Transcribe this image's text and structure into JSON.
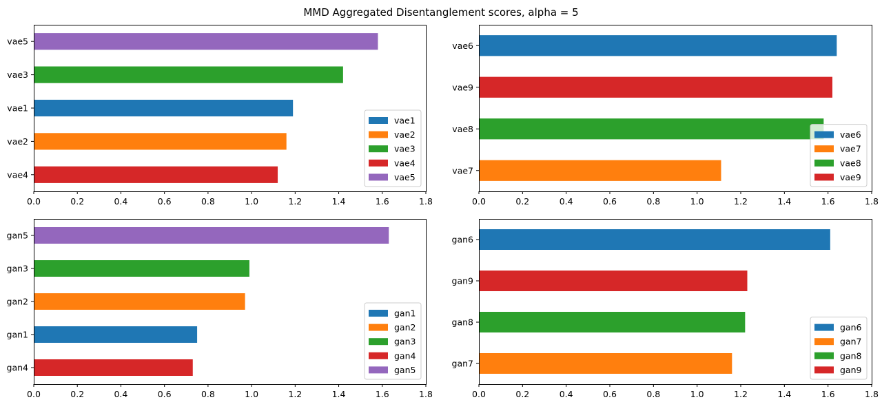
{
  "title": "MMD Aggregated Disentanglement scores, alpha = 5",
  "colors": {
    "c1": "#1f77b4",
    "c2": "#ff7f0e",
    "c3": "#2ca02c",
    "c4": "#d62728",
    "c5": "#9467bd"
  },
  "chart_data": [
    {
      "type": "bar",
      "orientation": "horizontal",
      "categories": [
        "vae4",
        "vae2",
        "vae1",
        "vae3",
        "vae5"
      ],
      "values": [
        1.12,
        1.16,
        1.19,
        1.42,
        1.58
      ],
      "bar_colors": [
        "#d62728",
        "#ff7f0e",
        "#1f77b4",
        "#2ca02c",
        "#9467bd"
      ],
      "xlim": [
        0,
        1.8
      ],
      "xticks": [
        0.0,
        0.2,
        0.4,
        0.6,
        0.8,
        1.0,
        1.2,
        1.4,
        1.6,
        1.8
      ],
      "legend": {
        "placement": "lower-right",
        "entries": [
          {
            "label": "vae1",
            "color": "#1f77b4"
          },
          {
            "label": "vae2",
            "color": "#ff7f0e"
          },
          {
            "label": "vae3",
            "color": "#2ca02c"
          },
          {
            "label": "vae4",
            "color": "#d62728"
          },
          {
            "label": "vae5",
            "color": "#9467bd"
          }
        ]
      }
    },
    {
      "type": "bar",
      "orientation": "horizontal",
      "categories": [
        "vae7",
        "vae8",
        "vae9",
        "vae6"
      ],
      "values": [
        1.11,
        1.58,
        1.62,
        1.64
      ],
      "bar_colors": [
        "#ff7f0e",
        "#2ca02c",
        "#d62728",
        "#1f77b4"
      ],
      "xlim": [
        0,
        1.8
      ],
      "xticks": [
        0.0,
        0.2,
        0.4,
        0.6,
        0.8,
        1.0,
        1.2,
        1.4,
        1.6,
        1.8
      ],
      "legend": {
        "placement": "lower-right",
        "entries": [
          {
            "label": "vae6",
            "color": "#1f77b4"
          },
          {
            "label": "vae7",
            "color": "#ff7f0e"
          },
          {
            "label": "vae8",
            "color": "#2ca02c"
          },
          {
            "label": "vae9",
            "color": "#d62728"
          }
        ]
      }
    },
    {
      "type": "bar",
      "orientation": "horizontal",
      "categories": [
        "gan4",
        "gan1",
        "gan2",
        "gan3",
        "gan5"
      ],
      "values": [
        0.73,
        0.75,
        0.97,
        0.99,
        1.63
      ],
      "bar_colors": [
        "#d62728",
        "#1f77b4",
        "#ff7f0e",
        "#2ca02c",
        "#9467bd"
      ],
      "xlim": [
        0,
        1.8
      ],
      "xticks": [
        0.0,
        0.2,
        0.4,
        0.6,
        0.8,
        1.0,
        1.2,
        1.4,
        1.6,
        1.8
      ],
      "legend": {
        "placement": "lower-right",
        "entries": [
          {
            "label": "gan1",
            "color": "#1f77b4"
          },
          {
            "label": "gan2",
            "color": "#ff7f0e"
          },
          {
            "label": "gan3",
            "color": "#2ca02c"
          },
          {
            "label": "gan4",
            "color": "#d62728"
          },
          {
            "label": "gan5",
            "color": "#9467bd"
          }
        ]
      }
    },
    {
      "type": "bar",
      "orientation": "horizontal",
      "categories": [
        "gan7",
        "gan8",
        "gan9",
        "gan6"
      ],
      "values": [
        1.16,
        1.22,
        1.23,
        1.61
      ],
      "bar_colors": [
        "#ff7f0e",
        "#2ca02c",
        "#d62728",
        "#1f77b4"
      ],
      "xlim": [
        0,
        1.8
      ],
      "xticks": [
        0.0,
        0.2,
        0.4,
        0.6,
        0.8,
        1.0,
        1.2,
        1.4,
        1.6,
        1.8
      ],
      "legend": {
        "placement": "lower-right",
        "entries": [
          {
            "label": "gan6",
            "color": "#1f77b4"
          },
          {
            "label": "gan7",
            "color": "#ff7f0e"
          },
          {
            "label": "gan8",
            "color": "#2ca02c"
          },
          {
            "label": "gan9",
            "color": "#d62728"
          }
        ]
      }
    }
  ]
}
